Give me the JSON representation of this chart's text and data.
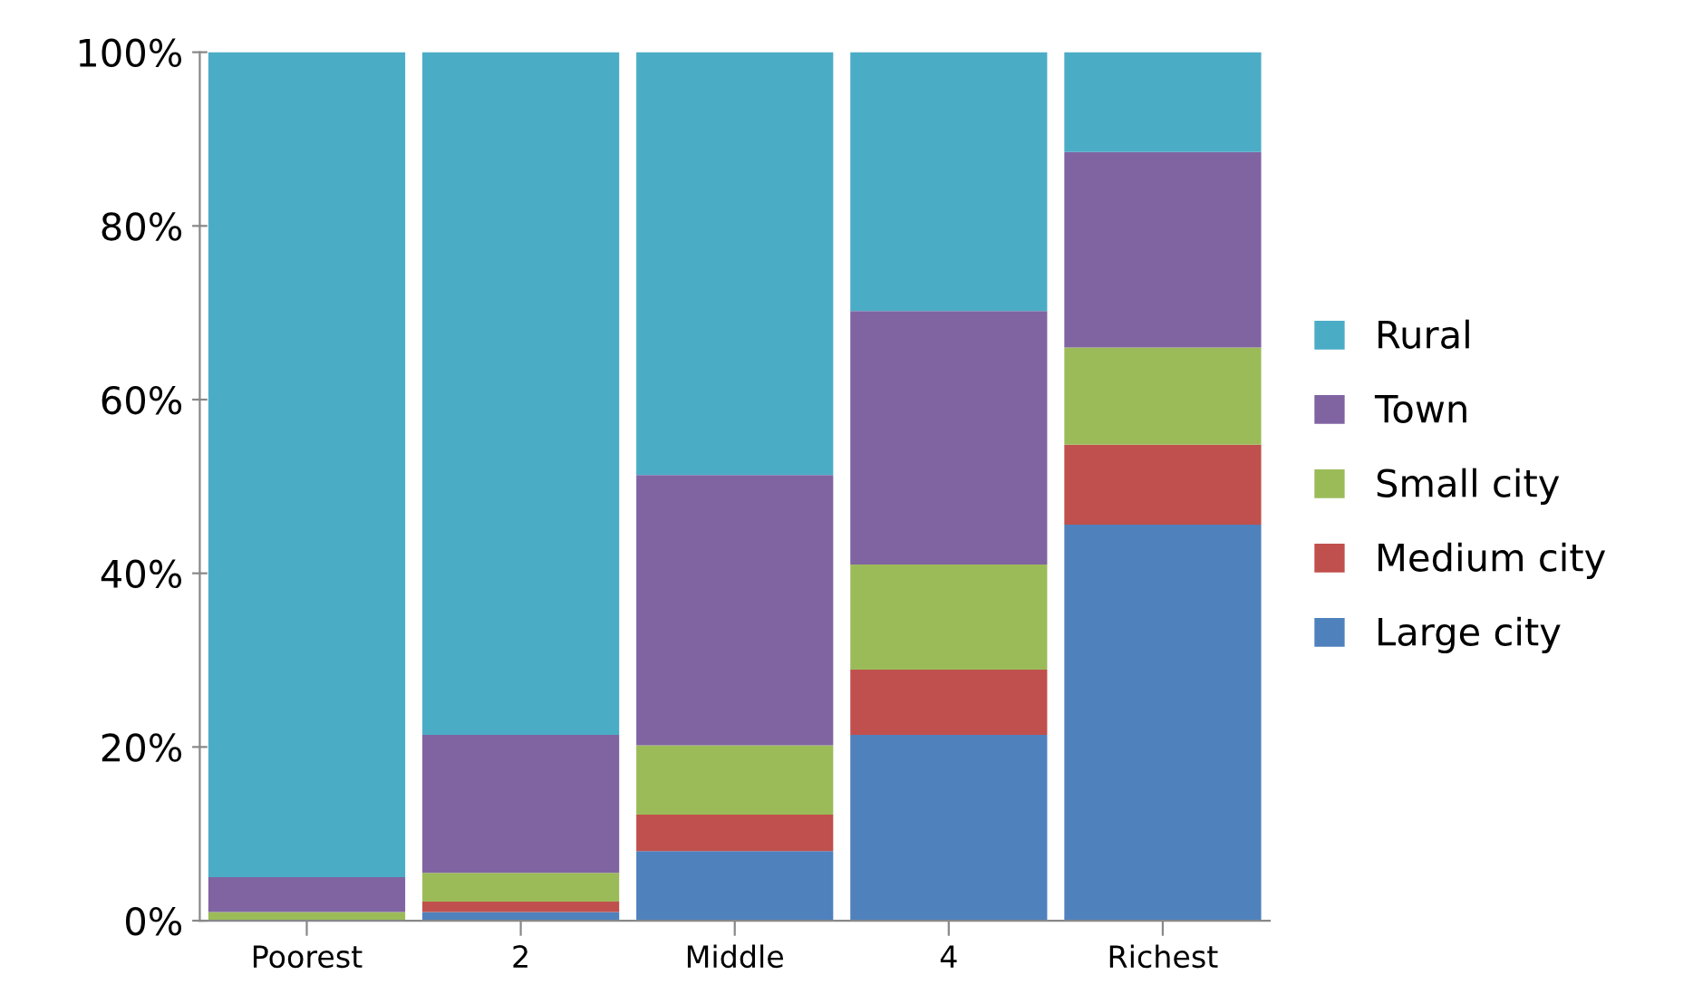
{
  "chart_data": {
    "type": "bar",
    "stacked": true,
    "categories": [
      "Poorest",
      "2",
      "Middle",
      "4",
      "Richest"
    ],
    "series": [
      {
        "name": "Large city",
        "color": "#4f81bd",
        "values": [
          0,
          1,
          8,
          21.4,
          45.6
        ]
      },
      {
        "name": "Medium city",
        "color": "#c0504d",
        "values": [
          0,
          1.2,
          4.2,
          7.5,
          9.2
        ]
      },
      {
        "name": "Small city",
        "color": "#9bbb59",
        "values": [
          1,
          3.3,
          8,
          12.1,
          11.2
        ]
      },
      {
        "name": "Town",
        "color": "#8064a2",
        "values": [
          4,
          15.9,
          31.1,
          29.2,
          22.5
        ]
      },
      {
        "name": "Rural",
        "color": "#4bacc6",
        "values": [
          95,
          78.6,
          48.7,
          29.8,
          11.5
        ]
      }
    ],
    "ylim": [
      0,
      100
    ],
    "yticks": [
      {
        "value": 0,
        "label": "0%"
      },
      {
        "value": 20,
        "label": "20%"
      },
      {
        "value": 40,
        "label": "40%"
      },
      {
        "value": 60,
        "label": "60%"
      },
      {
        "value": 80,
        "label": "80%"
      },
      {
        "value": 100,
        "label": "100%"
      }
    ],
    "grid": false,
    "legend": "right"
  }
}
